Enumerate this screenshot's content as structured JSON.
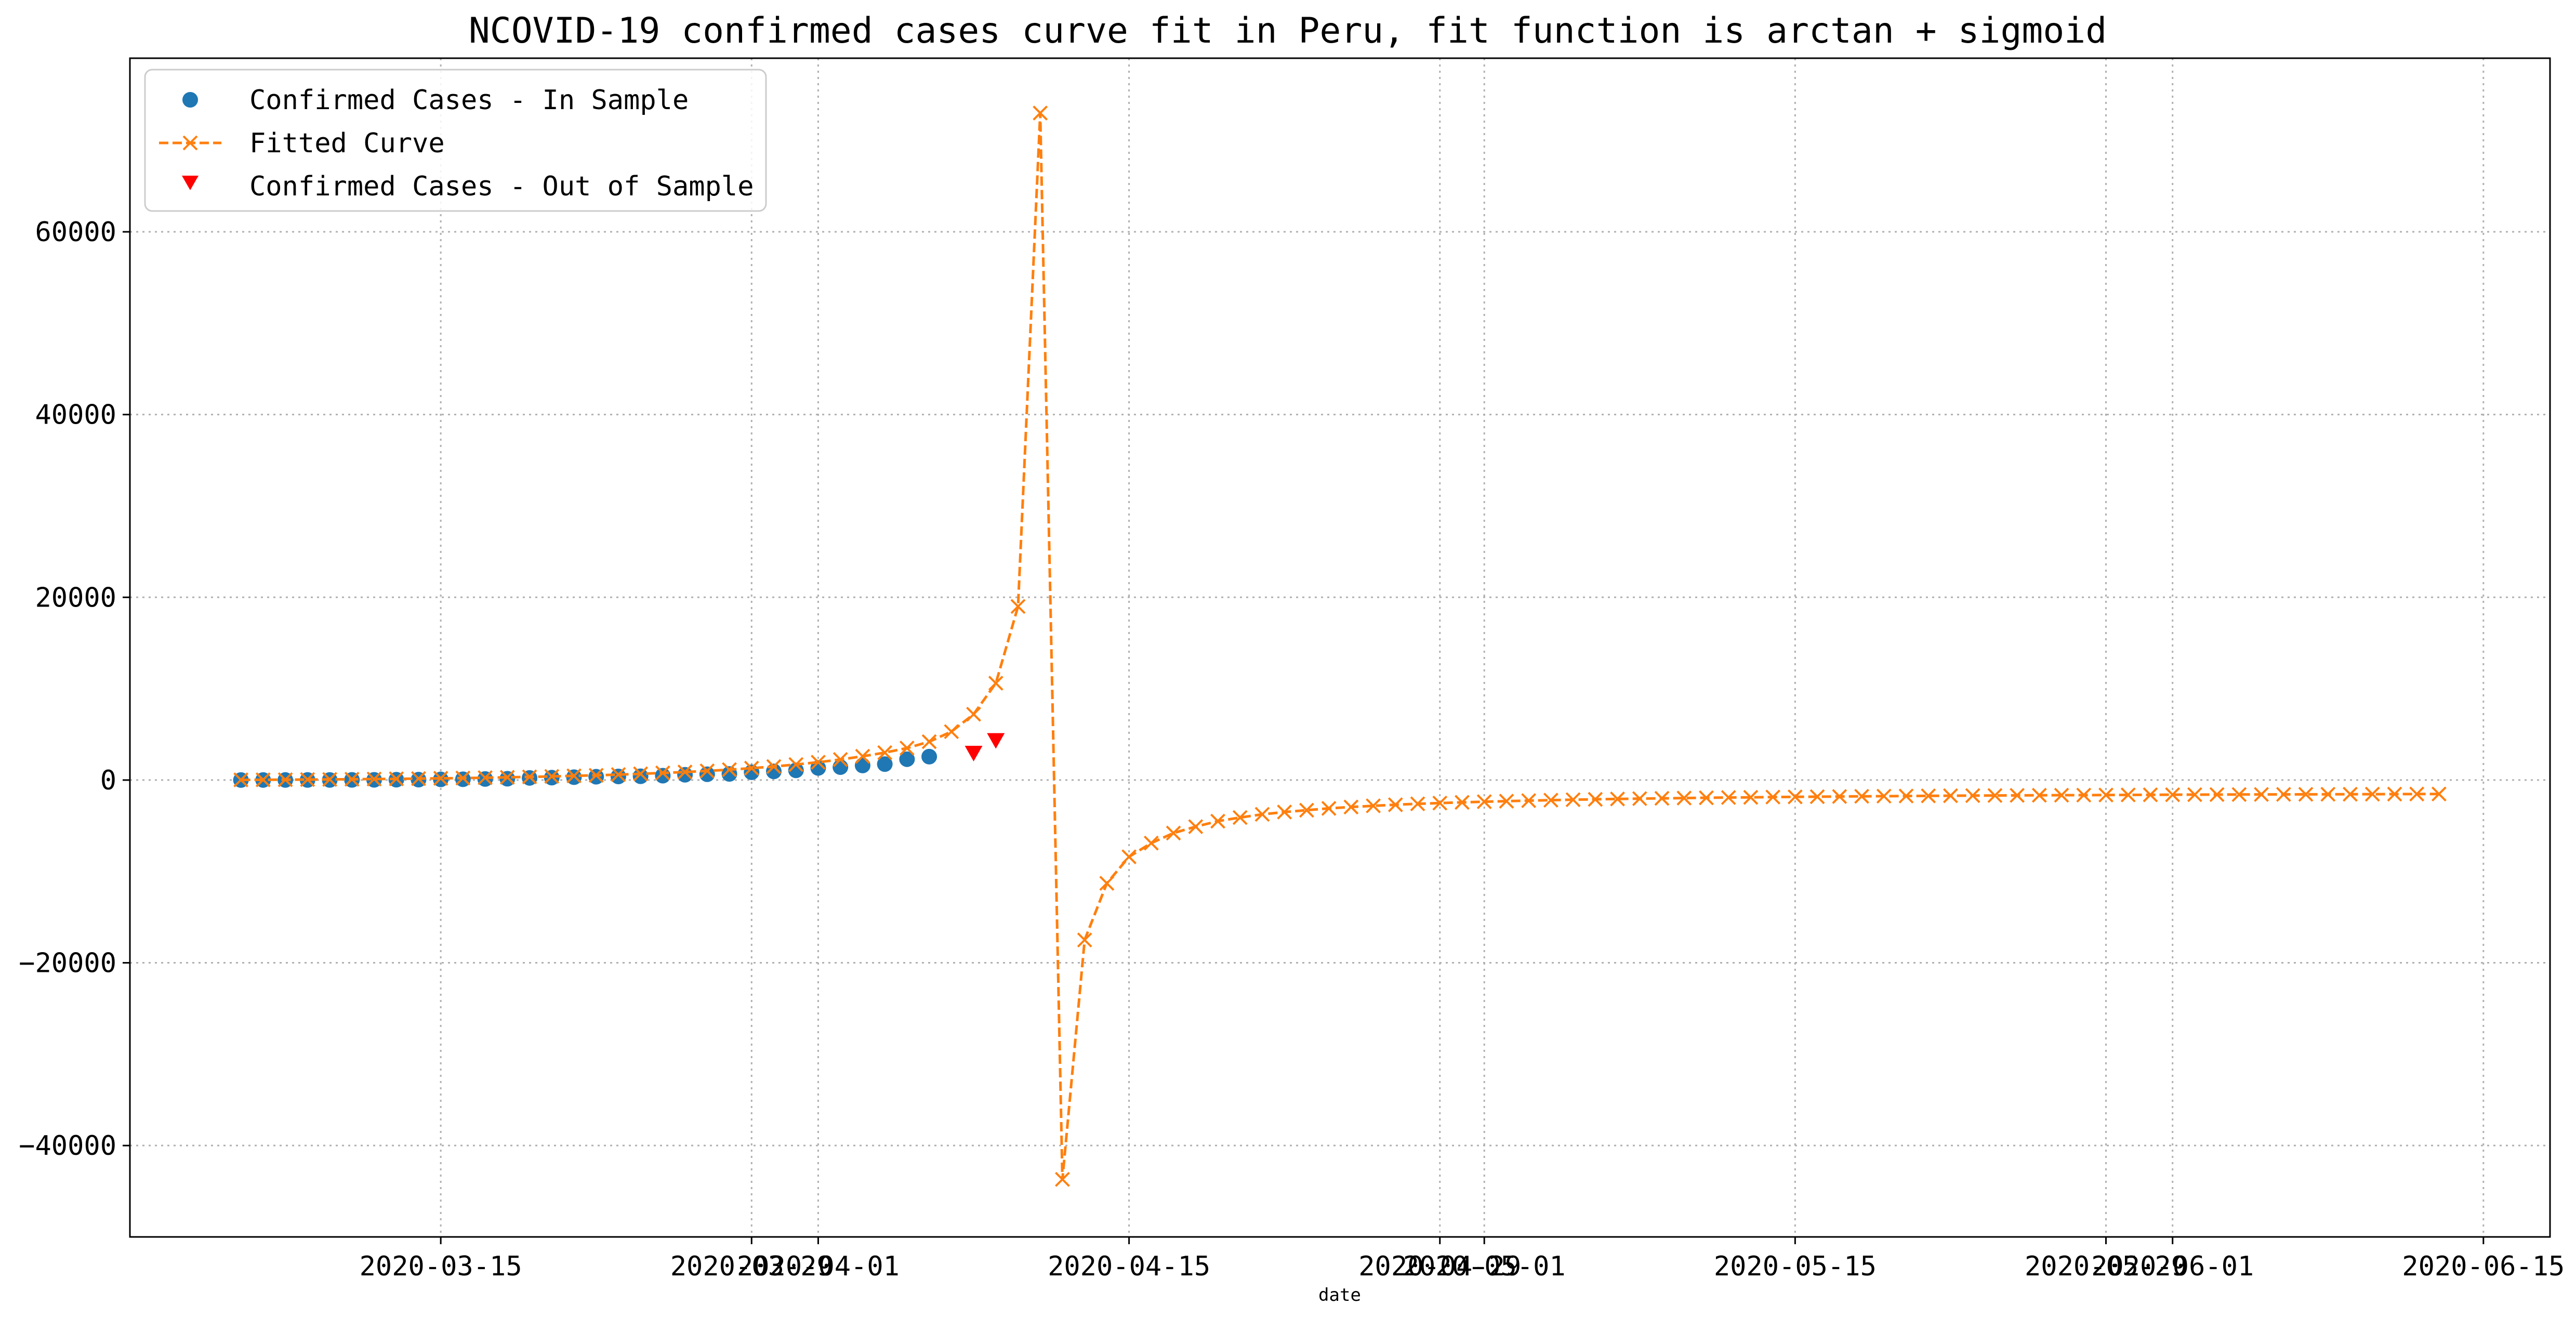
{
  "chart_data": {
    "type": "line",
    "title": "NCOVID-19 confirmed cases curve fit in Peru, fit function is arctan + sigmoid",
    "xlabel": "date",
    "ylabel": "",
    "x_axis": {
      "scale": "date",
      "range": [
        "2020-03-01",
        "2020-06-18"
      ],
      "ticks": [
        "2020-03-15",
        "2020-03-29",
        "2020-04-01",
        "2020-04-15",
        "2020-04-29",
        "2020-05-01",
        "2020-05-15",
        "2020-05-29",
        "2020-06-01",
        "2020-06-15"
      ]
    },
    "y_axis": {
      "range": [
        -50000,
        79000
      ],
      "ticks": [
        -40000,
        -20000,
        0,
        20000,
        40000,
        60000
      ]
    },
    "grid": true,
    "legend_position": "top-left",
    "series": [
      {
        "name": "Confirmed Cases - In Sample",
        "style": "markers",
        "marker": "circle",
        "color": "#1f77b4",
        "start_date": "2020-03-06",
        "values": [
          1,
          6,
          7,
          9,
          11,
          15,
          22,
          38,
          43,
          71,
          86,
          117,
          145,
          234,
          263,
          318,
          363,
          395,
          416,
          480,
          580,
          635,
          671,
          852,
          950,
          1065,
          1323,
          1414,
          1595,
          1746,
          2281,
          2561
        ]
      },
      {
        "name": "Fitted Curve",
        "style": "dashed line with x markers",
        "color": "#ff7f0e",
        "start_date": "2020-03-06",
        "values": [
          20,
          30,
          40,
          55,
          70,
          90,
          110,
          135,
          160,
          190,
          220,
          260,
          300,
          350,
          400,
          460,
          520,
          600,
          680,
          780,
          880,
          1000,
          1140,
          1300,
          1480,
          1700,
          1950,
          2250,
          2600,
          3000,
          3500,
          4200,
          5300,
          7200,
          10600,
          19000,
          73000,
          -43700,
          -17500,
          -11300,
          -8400,
          -6900,
          -5800,
          -5100,
          -4500,
          -4100,
          -3750,
          -3500,
          -3300,
          -3100,
          -2950,
          -2820,
          -2700,
          -2600,
          -2520,
          -2440,
          -2370,
          -2310,
          -2250,
          -2200,
          -2150,
          -2110,
          -2070,
          -2030,
          -2000,
          -1970,
          -1940,
          -1910,
          -1890,
          -1860,
          -1840,
          -1820,
          -1800,
          -1780,
          -1760,
          -1745,
          -1730,
          -1715,
          -1700,
          -1690,
          -1675,
          -1665,
          -1655,
          -1645,
          -1635,
          -1625,
          -1615,
          -1605,
          -1597,
          -1590,
          -1582,
          -1575,
          -1568,
          -1561,
          -1555,
          -1549,
          -1543,
          -1537,
          -1531,
          -1526
        ]
      },
      {
        "name": "Confirmed Cases - Out of Sample",
        "style": "markers",
        "marker": "triangle-down",
        "color": "#ff0000",
        "start_date": "2020-04-08",
        "values": [
          2954,
          4342
        ]
      }
    ]
  }
}
